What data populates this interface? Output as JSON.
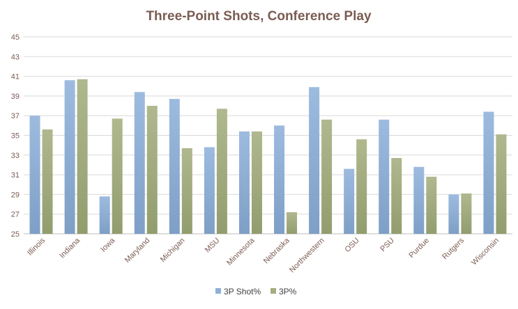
{
  "chart_data": {
    "type": "bar",
    "title": "Three-Point Shots, Conference Play",
    "categories": [
      "Illinois",
      "Indiana",
      "Iowa",
      "Maryland",
      "Michigan",
      "MSU",
      "Minnesota",
      "Nebraska",
      "Northwestern",
      "OSU",
      "PSU",
      "Purdue",
      "Rutgers",
      "Wisconsin"
    ],
    "series": [
      {
        "name": "3P Shot%",
        "color": "#8fb0d6",
        "values": [
          37.0,
          40.6,
          28.8,
          39.4,
          38.7,
          33.8,
          35.4,
          36.0,
          39.9,
          31.6,
          36.6,
          31.8,
          29.0,
          37.4
        ]
      },
      {
        "name": "3P%",
        "color": "#a4ae82",
        "values": [
          35.6,
          40.7,
          36.7,
          38.0,
          33.7,
          37.7,
          35.4,
          27.2,
          36.6,
          34.6,
          32.7,
          30.8,
          29.1,
          35.1
        ]
      }
    ],
    "ylim": [
      25,
      45
    ],
    "yticks": [
      "25",
      "27",
      "29",
      "31",
      "33",
      "35",
      "37",
      "39",
      "41",
      "43",
      "45"
    ],
    "grid": true,
    "legend": "bottom"
  }
}
